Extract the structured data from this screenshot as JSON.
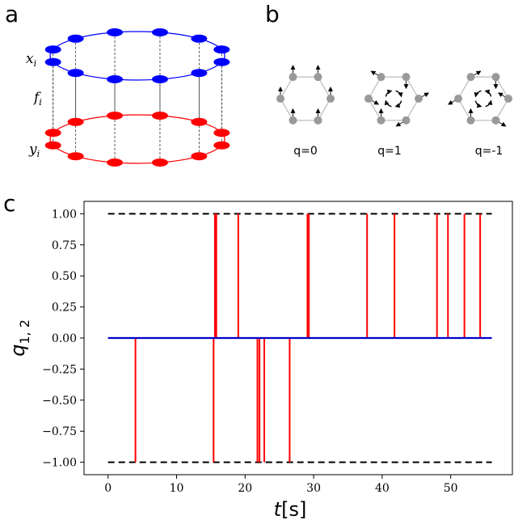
{
  "panels": {
    "a": "a",
    "b": "b",
    "c": "c"
  },
  "panel_a": {
    "labels": {
      "x": "x_i",
      "f": "f_i",
      "y": "y_i"
    },
    "colors": {
      "top_ring": "#0000ff",
      "bottom_ring": "#ff0000",
      "links": "#333333"
    }
  },
  "panel_b": {
    "labels": [
      "q=0",
      "q=1",
      "q=-1"
    ],
    "colors": {
      "hexagon": "#bbbbbb",
      "nodes": "#999999",
      "arrows": "#000000"
    }
  },
  "chart_data": {
    "type": "line",
    "xlabel": "t[s]",
    "ylabel": "q_{1,2}",
    "xlim": [
      -3.5,
      59
    ],
    "ylim": [
      -1.1,
      1.1
    ],
    "xticks": [
      0,
      10,
      20,
      30,
      40,
      50
    ],
    "yticks": [
      "1.00",
      "0.75",
      "0.50",
      "0.25",
      "0.00",
      "−0.25",
      "−0.50",
      "−0.75",
      "−1.00"
    ],
    "ytick_values": [
      1.0,
      0.75,
      0.5,
      0.25,
      0.0,
      -0.25,
      -0.5,
      -0.75,
      -1.0
    ],
    "reference_lines": [
      {
        "y": 1.0,
        "x_range": [
          0,
          56
        ],
        "color": "#000000",
        "style": "dashed"
      },
      {
        "y": -1.0,
        "x_range": [
          0,
          56
        ],
        "color": "#000000",
        "style": "dashed"
      }
    ],
    "series": [
      {
        "color": "#ff0000",
        "spikes_positive": [
          15.6,
          15.8,
          19.0,
          29.1,
          29.3,
          37.8,
          41.8,
          48.0,
          49.6,
          52.0,
          54.3
        ],
        "spikes_negative": [
          4.0,
          15.4,
          21.8,
          22.1,
          22.8,
          26.5
        ]
      },
      {
        "color": "#0000cc",
        "x": [
          0,
          56
        ],
        "y": [
          0,
          0
        ]
      }
    ]
  }
}
